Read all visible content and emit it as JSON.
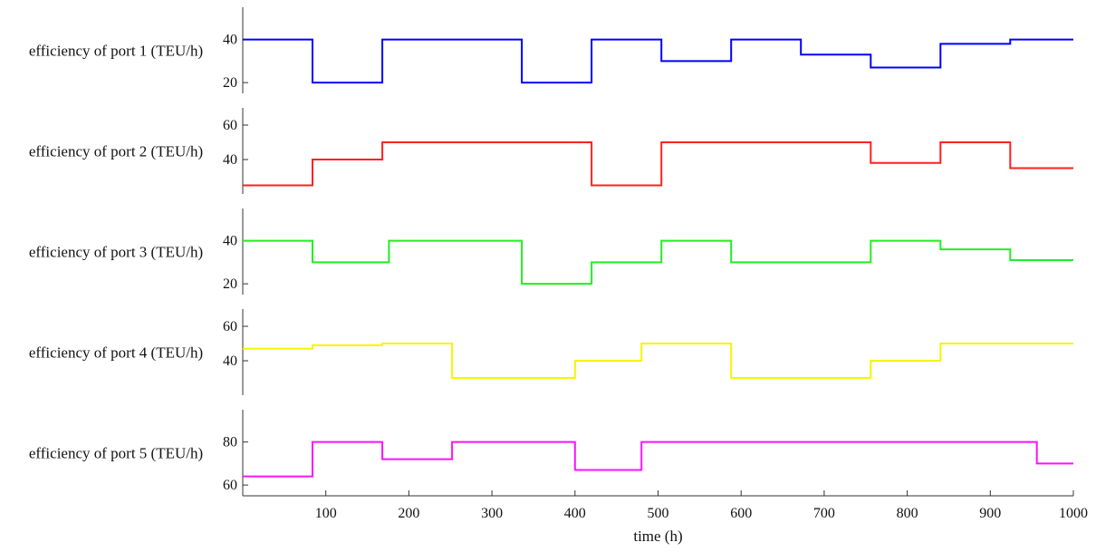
{
  "chart_data": {
    "type": "line",
    "xlabel": "time (h)",
    "xlim": [
      0,
      1000
    ],
    "xticks": [
      100,
      200,
      300,
      400,
      500,
      600,
      700,
      800,
      900,
      1000
    ],
    "panels": [
      {
        "ylabel": "efficiency of port 1 (TEU/h)",
        "color": "#0000ff",
        "ylim": [
          15,
          55
        ],
        "yticks": [
          20,
          40
        ],
        "steps": [
          [
            0,
            40
          ],
          [
            84,
            20
          ],
          [
            168,
            40
          ],
          [
            336,
            20
          ],
          [
            420,
            40
          ],
          [
            504,
            30
          ],
          [
            588,
            40
          ],
          [
            672,
            33
          ],
          [
            756,
            27
          ],
          [
            840,
            38
          ],
          [
            924,
            40
          ],
          [
            1000,
            40
          ]
        ]
      },
      {
        "ylabel": "efficiency of port 2 (TEU/h)",
        "color": "#ff2020",
        "ylim": [
          20,
          70
        ],
        "yticks": [
          40,
          60
        ],
        "steps": [
          [
            0,
            25
          ],
          [
            84,
            40
          ],
          [
            168,
            50
          ],
          [
            420,
            25
          ],
          [
            504,
            50
          ],
          [
            756,
            38
          ],
          [
            840,
            50
          ],
          [
            924,
            35
          ],
          [
            1000,
            35
          ]
        ]
      },
      {
        "ylabel": "efficiency of port 3 (TEU/h)",
        "color": "#22ee22",
        "ylim": [
          15,
          55
        ],
        "yticks": [
          20,
          40
        ],
        "steps": [
          [
            0,
            40
          ],
          [
            84,
            30
          ],
          [
            176,
            40
          ],
          [
            336,
            20
          ],
          [
            420,
            30
          ],
          [
            504,
            40
          ],
          [
            588,
            30
          ],
          [
            756,
            40
          ],
          [
            840,
            36
          ],
          [
            924,
            31
          ],
          [
            1000,
            31
          ]
        ]
      },
      {
        "ylabel": "efficiency of port 4 (TEU/h)",
        "color": "#f5f500",
        "ylim": [
          20,
          70
        ],
        "yticks": [
          40,
          60
        ],
        "steps": [
          [
            0,
            47
          ],
          [
            84,
            49
          ],
          [
            168,
            50
          ],
          [
            252,
            30
          ],
          [
            400,
            40
          ],
          [
            480,
            50
          ],
          [
            588,
            30
          ],
          [
            756,
            40
          ],
          [
            840,
            50
          ],
          [
            1000,
            50
          ]
        ]
      },
      {
        "ylabel": "efficiency of port 5 (TEU/h)",
        "color": "#ff10ff",
        "ylim": [
          55,
          95
        ],
        "yticks": [
          60,
          80
        ],
        "steps": [
          [
            0,
            64
          ],
          [
            84,
            80
          ],
          [
            168,
            72
          ],
          [
            252,
            80
          ],
          [
            400,
            67
          ],
          [
            480,
            80
          ],
          [
            956,
            70
          ],
          [
            1000,
            70
          ]
        ]
      }
    ]
  }
}
